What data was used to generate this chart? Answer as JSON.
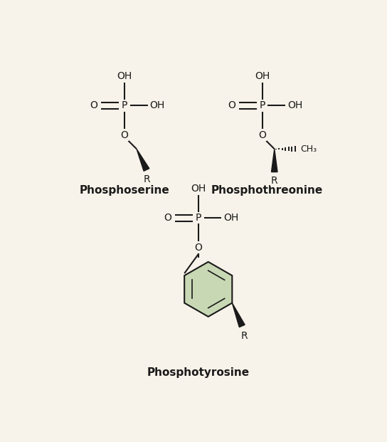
{
  "bg_color": "#f8f3ea",
  "line_color": "#1a1a1a",
  "text_color": "#1a1a1a",
  "ring_fill": "#c8d8b4",
  "ring_edge": "#1a1a1a",
  "title1": "Phosphoserine",
  "title2": "Phosphothreonine",
  "title3": "Phosphotyrosine",
  "figsize": [
    5.44,
    6.21
  ],
  "dpi": 100
}
